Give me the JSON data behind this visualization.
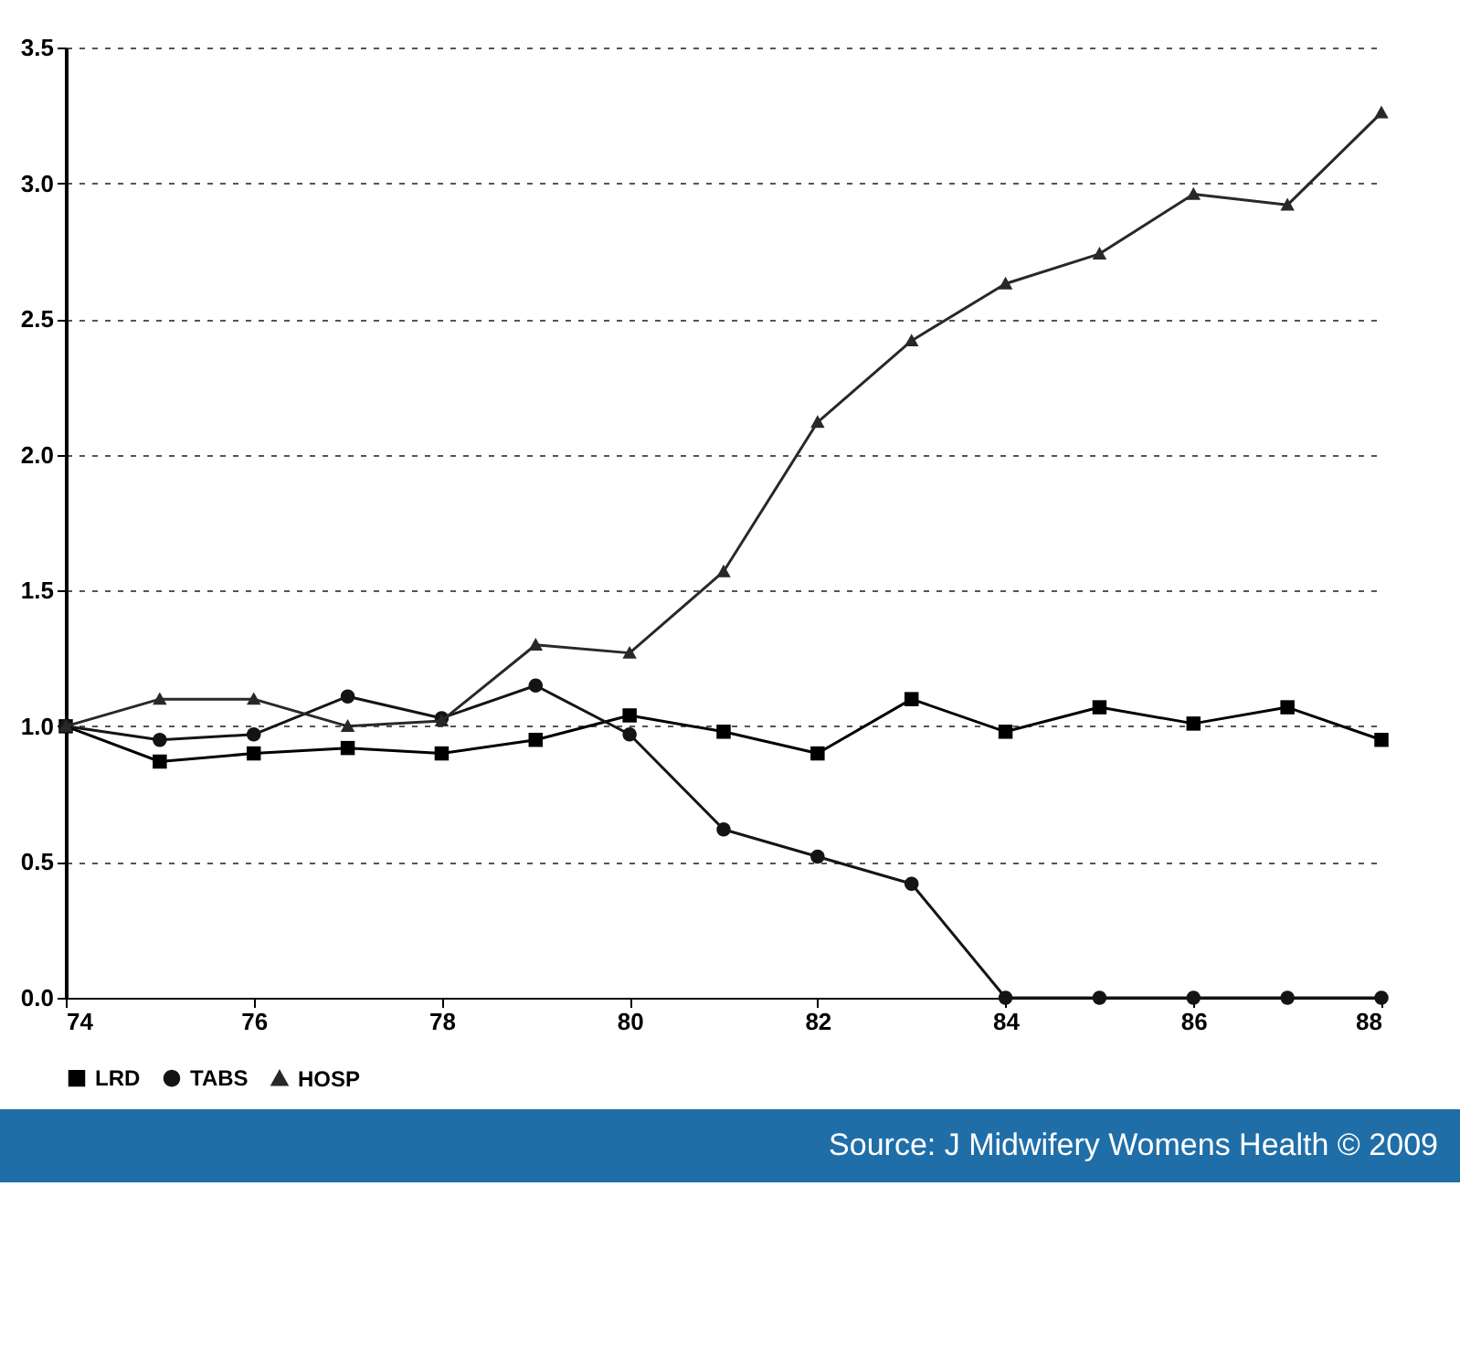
{
  "chart_data": {
    "type": "line",
    "x": [
      74,
      75,
      76,
      77,
      78,
      79,
      80,
      81,
      82,
      83,
      84,
      85,
      86,
      87,
      88
    ],
    "xlim": [
      74,
      88
    ],
    "xticks": [
      74,
      76,
      78,
      80,
      82,
      84,
      86,
      88
    ],
    "ylim": [
      0,
      3.5
    ],
    "yticks": [
      {
        "value": 0,
        "label": "0.0"
      },
      {
        "value": 0.5,
        "label": "0.5"
      },
      {
        "value": 1,
        "label": "1.0"
      },
      {
        "value": 1.5,
        "label": "1.5"
      },
      {
        "value": 2,
        "label": "2.0"
      },
      {
        "value": 2.5,
        "label": "2.5"
      },
      {
        "value": 3,
        "label": "3.0"
      },
      {
        "value": 3.5,
        "label": "3.5"
      }
    ],
    "grid": "y",
    "legend": "bottom",
    "line_style": "solid",
    "series": [
      {
        "name": "LRD",
        "color": "#000000",
        "marker": "square",
        "values": [
          1.0,
          0.87,
          0.9,
          0.92,
          0.9,
          0.95,
          1.04,
          0.98,
          0.9,
          1.1,
          0.98,
          1.07,
          1.01,
          1.07,
          0.95
        ]
      },
      {
        "name": "TABS",
        "color": "#141414",
        "marker": "circle",
        "values": [
          1.0,
          0.95,
          0.97,
          1.11,
          1.03,
          1.15,
          0.97,
          0.62,
          0.52,
          0.42,
          0,
          0,
          0,
          0,
          0
        ]
      },
      {
        "name": "HOSP",
        "color": "#282828",
        "marker": "triangle",
        "values": [
          1.0,
          1.1,
          1.1,
          1.0,
          1.02,
          1.3,
          1.27,
          1.57,
          2.12,
          2.42,
          2.63,
          2.74,
          2.96,
          2.92,
          3.26
        ]
      }
    ],
    "annotations": [
      "Source: J Midwifery Womens Health © 2009"
    ]
  }
}
